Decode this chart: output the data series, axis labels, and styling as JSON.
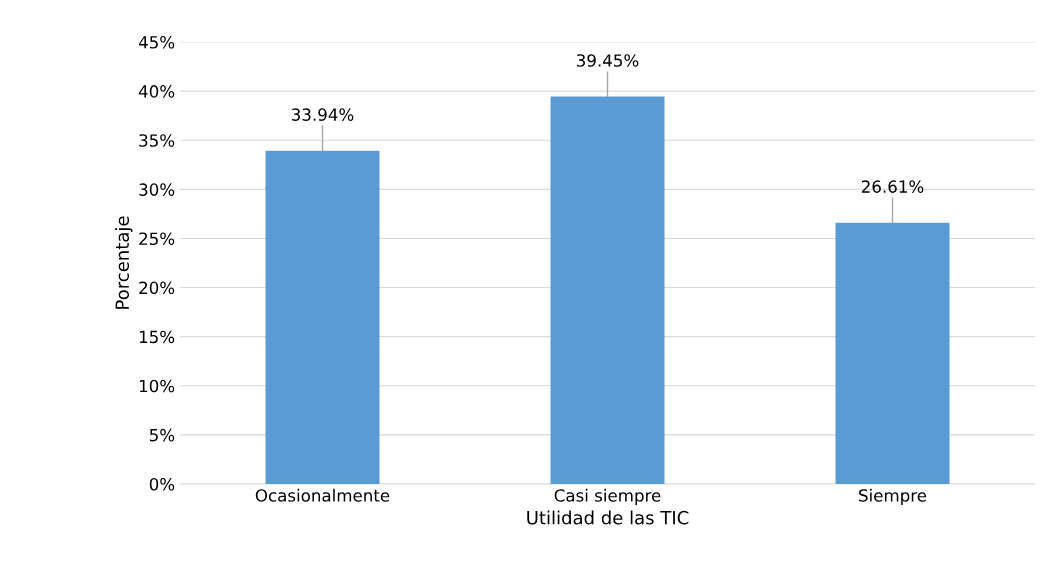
{
  "chart_data": {
    "type": "bar",
    "xlabel": "Utilidad de las TIC",
    "ylabel": "Porcentaje",
    "categories": [
      "Ocasionalmente",
      "Casi siempre",
      "Siempre"
    ],
    "values": [
      33.94,
      39.45,
      26.61
    ],
    "color": "#5b9bd5",
    "value_labels": [
      "33.94%",
      "39.45%",
      "26.61%"
    ],
    "ylim": [
      0,
      45
    ],
    "yticks": [
      {
        "value": 0,
        "label": "0%"
      },
      {
        "value": 5,
        "label": "5%"
      },
      {
        "value": 10,
        "label": "10%"
      },
      {
        "value": 15,
        "label": "15%"
      },
      {
        "value": 20,
        "label": "20%"
      },
      {
        "value": 25,
        "label": "25%"
      },
      {
        "value": 30,
        "label": "30%"
      },
      {
        "value": 35,
        "label": "35%"
      },
      {
        "value": 40,
        "label": "40%"
      },
      {
        "value": 45,
        "label": "45%"
      }
    ],
    "grid": "y",
    "legend": false
  }
}
